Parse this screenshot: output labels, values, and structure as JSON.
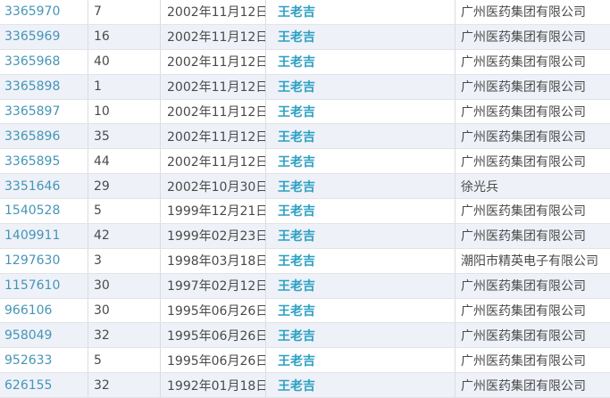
{
  "colors": {
    "registration_link": "#4695b6",
    "trademark_link": "#2da0c2",
    "body_text": "#4a4a4a",
    "stripe_row_bg": "#eef2f8",
    "row_border": "#e1e3e6",
    "column_border": "#d9dcdf"
  },
  "rows": [
    {
      "reg_no": "3365970",
      "class_no": "7",
      "date": "2002年11月12日",
      "mark": "王老吉",
      "applicant": "广州医药集团有限公司"
    },
    {
      "reg_no": "3365969",
      "class_no": "16",
      "date": "2002年11月12日",
      "mark": "王老吉",
      "applicant": "广州医药集团有限公司"
    },
    {
      "reg_no": "3365968",
      "class_no": "40",
      "date": "2002年11月12日",
      "mark": "王老吉",
      "applicant": "广州医药集团有限公司"
    },
    {
      "reg_no": "3365898",
      "class_no": "1",
      "date": "2002年11月12日",
      "mark": "王老吉",
      "applicant": "广州医药集团有限公司"
    },
    {
      "reg_no": "3365897",
      "class_no": "10",
      "date": "2002年11月12日",
      "mark": "王老吉",
      "applicant": "广州医药集团有限公司"
    },
    {
      "reg_no": "3365896",
      "class_no": "35",
      "date": "2002年11月12日",
      "mark": "王老吉",
      "applicant": "广州医药集团有限公司"
    },
    {
      "reg_no": "3365895",
      "class_no": "44",
      "date": "2002年11月12日",
      "mark": "王老吉",
      "applicant": "广州医药集团有限公司"
    },
    {
      "reg_no": "3351646",
      "class_no": "29",
      "date": "2002年10月30日",
      "mark": "王老吉",
      "applicant": "徐光兵"
    },
    {
      "reg_no": "1540528",
      "class_no": "5",
      "date": "1999年12月21日",
      "mark": "王老吉",
      "applicant": "广州医药集团有限公司"
    },
    {
      "reg_no": "1409911",
      "class_no": "42",
      "date": "1999年02月23日",
      "mark": "王老吉",
      "applicant": "广州医药集团有限公司"
    },
    {
      "reg_no": "1297630",
      "class_no": "3",
      "date": "1998年03月18日",
      "mark": "王老吉",
      "applicant": "潮阳市精英电子有限公司"
    },
    {
      "reg_no": "1157610",
      "class_no": "30",
      "date": "1997年02月12日",
      "mark": "王老吉",
      "applicant": "广州医药集团有限公司"
    },
    {
      "reg_no": "966106",
      "class_no": "30",
      "date": "1995年06月26日",
      "mark": "王老吉",
      "applicant": "广州医药集团有限公司"
    },
    {
      "reg_no": "958049",
      "class_no": "32",
      "date": "1995年06月26日",
      "mark": "王老吉",
      "applicant": "广州医药集团有限公司"
    },
    {
      "reg_no": "952633",
      "class_no": "5",
      "date": "1995年06月26日",
      "mark": "王老吉",
      "applicant": "广州医药集团有限公司"
    },
    {
      "reg_no": "626155",
      "class_no": "32",
      "date": "1992年01月18日",
      "mark": "王老吉",
      "applicant": "广州医药集团有限公司"
    }
  ]
}
